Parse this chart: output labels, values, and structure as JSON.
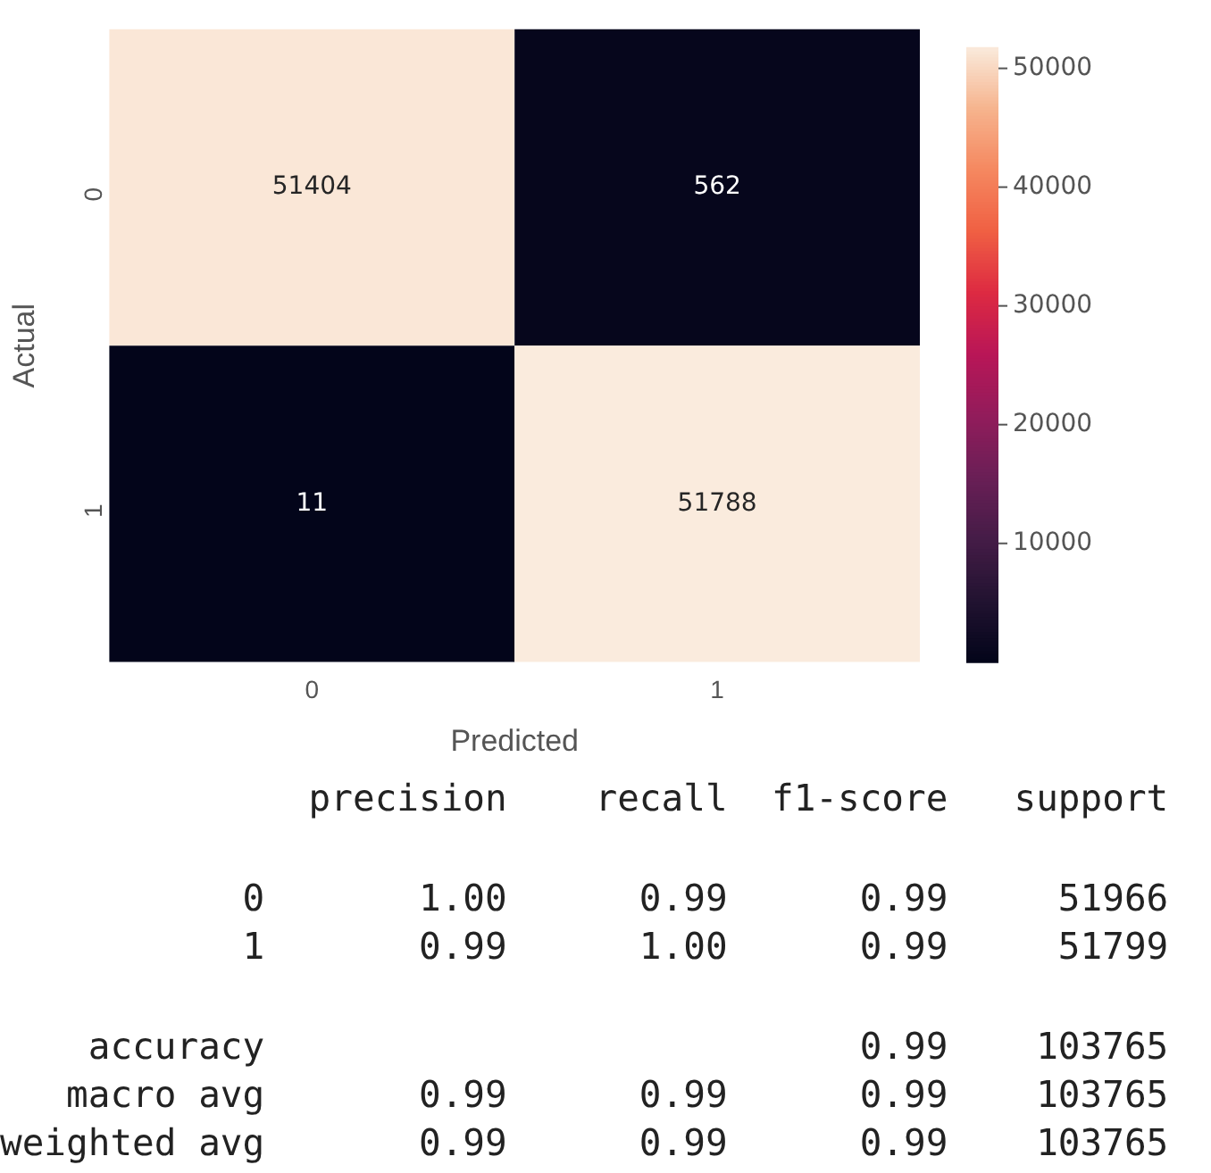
{
  "chart_data": {
    "type": "heatmap",
    "xlabel": "Predicted",
    "ylabel": "Actual",
    "categories": [
      "0",
      "1"
    ],
    "y_categories": [
      "0",
      "1"
    ],
    "cells": [
      [
        51404,
        562
      ],
      [
        11,
        51788
      ]
    ],
    "data_labels": true,
    "clim": [
      11,
      51788
    ],
    "cticks": [
      10000,
      20000,
      30000,
      40000,
      50000
    ],
    "annotations": [
      "              precision    recall  f1-score   support",
      "           0       1.00      0.99      0.99     51966",
      "           1       0.99      1.00      0.99     51799",
      "    accuracy                           0.99    103765",
      "   macro avg       0.99      0.99      0.99    103765",
      "weighted avg       0.99      0.99      0.99    103765"
    ]
  }
}
